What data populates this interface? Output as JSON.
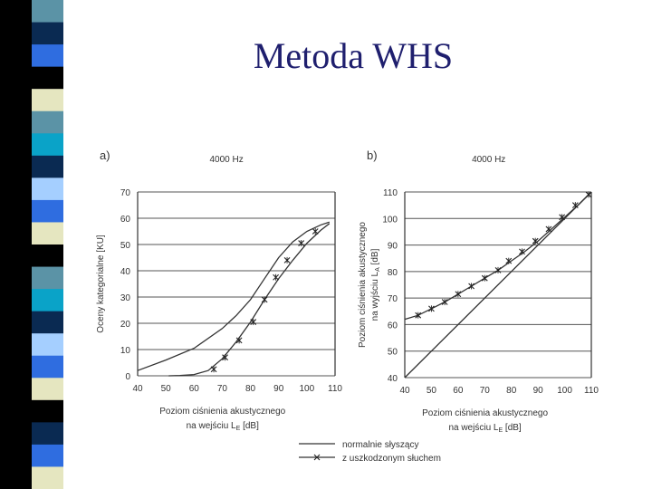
{
  "slide": {
    "title": "Metoda WHS"
  },
  "decor": {
    "stripe_colors": [
      "#5b93a6",
      "#0a2a52",
      "#2f6de0",
      "#000000",
      "#e5e6c0",
      "#5b93a6",
      "#0aa3c8",
      "#0a2a52",
      "#a5cfff",
      "#2f6de0",
      "#e5e6c0",
      "#000000",
      "#5b93a6",
      "#0aa3c8",
      "#0a2a52",
      "#a5cfff",
      "#2f6de0",
      "#e5e6c0",
      "#000000",
      "#0a2a52",
      "#2f6de0",
      "#e5e6c0"
    ]
  },
  "chart_data": [
    {
      "type": "line",
      "panel_label": "a)",
      "title": "4000 Hz",
      "xlabel": [
        "Poziom ciśnienia akustycznego",
        "na wejściu  L",
        "E",
        " [dB]"
      ],
      "ylabel": "Oceny  kategorialne   [KU]",
      "xlim": [
        40,
        110
      ],
      "ylim": [
        0,
        70
      ],
      "xticks": [
        40,
        50,
        60,
        70,
        80,
        90,
        100,
        110
      ],
      "yticks": [
        0,
        10,
        20,
        30,
        40,
        50,
        60,
        70
      ],
      "grid": "horizontal",
      "series": [
        {
          "name": "normalnie słyszący",
          "marker": "none",
          "x": [
            40,
            50,
            60,
            70,
            75,
            80,
            85,
            90,
            95,
            100,
            105,
            108
          ],
          "y": [
            2,
            6,
            10.5,
            18,
            23,
            29,
            37,
            45,
            51,
            55,
            57.5,
            58.5
          ]
        },
        {
          "name": "z uszkodzonym słuchem",
          "marker": "x",
          "x": [
            51,
            55,
            60,
            65,
            70,
            75,
            80,
            85,
            90,
            95,
            100,
            105,
            108
          ],
          "y": [
            0,
            0.1,
            0.5,
            2,
            6.5,
            13,
            20.5,
            29,
            37,
            44,
            50.5,
            55.5,
            58
          ]
        },
        {
          "name": "z uszkodzonym słuchem",
          "marker": "points",
          "x": [
            67,
            71,
            76,
            81,
            85,
            89,
            93,
            98,
            103
          ],
          "y": [
            2.5,
            7,
            13.5,
            20.5,
            29,
            37.5,
            44,
            50.5,
            55
          ]
        }
      ]
    },
    {
      "type": "line",
      "panel_label": "b)",
      "title": "4000 Hz",
      "xlabel": [
        "Poziom ciśnienia akustycznego",
        "na wejściu  L",
        "E",
        " [dB]"
      ],
      "ylabel": [
        "Poziom ciśnienia akustycznego",
        "na wyjściu  L",
        "A",
        " [dB]"
      ],
      "xlim": [
        40,
        110
      ],
      "ylim": [
        40,
        110
      ],
      "xticks": [
        40,
        50,
        60,
        70,
        80,
        90,
        100,
        110
      ],
      "yticks": [
        40,
        50,
        60,
        70,
        80,
        90,
        100,
        110
      ],
      "grid": "horizontal",
      "series": [
        {
          "name": "normalnie słyszący",
          "marker": "none",
          "x": [
            40,
            110
          ],
          "y": [
            40,
            110
          ]
        },
        {
          "name": "z uszkodzonym słuchem",
          "marker": "x",
          "x": [
            40,
            45,
            50,
            55,
            60,
            65,
            70,
            75,
            80,
            85,
            90,
            95,
            100,
            105,
            110
          ],
          "y": [
            62,
            63.5,
            66,
            68.5,
            71.5,
            74.5,
            77.5,
            80.5,
            84,
            87.5,
            91.5,
            96,
            100.5,
            105,
            110
          ]
        },
        {
          "name": "z uszkodzonym słuchem",
          "marker": "points",
          "x": [
            45,
            50,
            55,
            60,
            65,
            70,
            75,
            79,
            84,
            89,
            94,
            99,
            104,
            109
          ],
          "y": [
            63.5,
            66,
            68.5,
            71.5,
            74.5,
            77.5,
            80.5,
            84,
            87.5,
            91.5,
            96,
            100.5,
            105,
            109
          ]
        }
      ]
    }
  ],
  "legend": {
    "placement": "bottom",
    "entries": [
      {
        "label": "normalnie słyszący",
        "marker": "none"
      },
      {
        "label": "z uszkodzonym słuchem",
        "marker": "x"
      }
    ]
  }
}
